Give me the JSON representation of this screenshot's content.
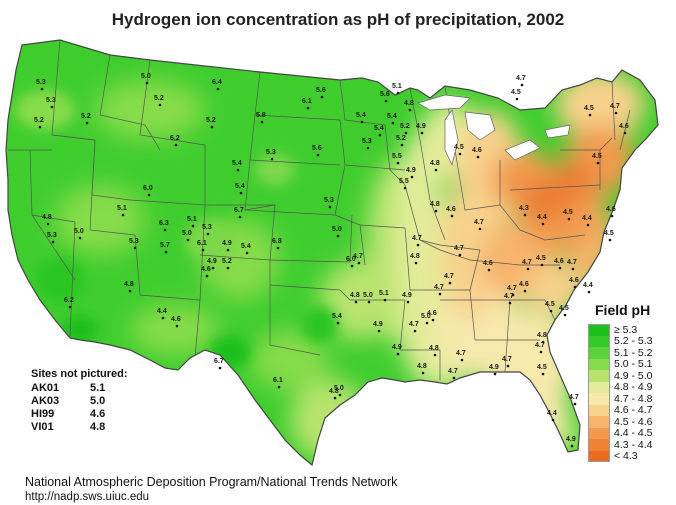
{
  "title": "Hydrogen ion concentration as pH of precipitation, 2002",
  "legend": {
    "title": "Field pH",
    "classes": [
      {
        "label": "≥ 5.3",
        "color": "#1cbf1c"
      },
      {
        "label": "5.2 - 5.3",
        "color": "#33c928"
      },
      {
        "label": "5.1 - 5.2",
        "color": "#5ad23a"
      },
      {
        "label": "5.0 - 5.1",
        "color": "#86dc4a"
      },
      {
        "label": "4.9 - 5.0",
        "color": "#b8e46e"
      },
      {
        "label": "4.8 - 4.9",
        "color": "#e2ec9a"
      },
      {
        "label": "4.7 - 4.8",
        "color": "#f7e8ac"
      },
      {
        "label": "4.6 - 4.7",
        "color": "#f8d18c"
      },
      {
        "label": "4.5 - 4.6",
        "color": "#f6b46c"
      },
      {
        "label": "4.4 - 4.5",
        "color": "#f29a4e"
      },
      {
        "label": "4.3 - 4.4",
        "color": "#ee8134"
      },
      {
        "label": "< 4.3",
        "color": "#ea6a20"
      }
    ]
  },
  "sites_not_pictured": {
    "heading": "Sites not pictured:",
    "rows": [
      {
        "site": "AK01",
        "value": "5.1"
      },
      {
        "site": "AK03",
        "value": "5.0"
      },
      {
        "site": "HI99",
        "value": "4.6"
      },
      {
        "site": "VI01",
        "value": "4.8"
      }
    ]
  },
  "credit": "National Atmospheric Deposition Program/National Trends Network",
  "url": "http://nadp.sws.uiuc.edu",
  "colors": {
    "west_green": "#3fcd2e",
    "mid_green": "#7bd848",
    "transition_yellow": "#e6ee9c",
    "east_cream": "#f6e6a8",
    "east_orange": "#f3a25a",
    "peak_orange": "#ec7a30",
    "state_lines": "#555555"
  },
  "site_values": [
    "5.3",
    "5.0",
    "6.4",
    "5.6",
    "5.1",
    "5.3",
    "5.2",
    "5.2",
    "6.1",
    "4.8",
    "5.2",
    "5.2",
    "4.9",
    "5.4",
    "5.4",
    "5.6",
    "4.7",
    "4.5",
    "4.5",
    "4.7",
    "5.4",
    "5.8",
    "5.3",
    "5.6",
    "6.2",
    "5.2",
    "5.5",
    "5.2",
    "4.6",
    "4.5",
    "4.8",
    "5.3",
    "4.6",
    "4.5",
    "4.9",
    "6.0",
    "5.4",
    "5.5",
    "6.3",
    "5.3",
    "5.7",
    "5.1",
    "6.1",
    "5.0",
    "4.9",
    "5.4",
    "6.8",
    "5.3",
    "4.8",
    "4.6",
    "4.7",
    "4.3",
    "4.4",
    "4.5",
    "4.4",
    "6.7",
    "4.6",
    "4.5",
    "4.7",
    "4.7",
    "5.4",
    "5.3",
    "6.0",
    "5.2",
    "4.9",
    "4.8",
    "4.7",
    "4.6",
    "4.7",
    "4.5",
    "5.0",
    "4.8",
    "5.1",
    "4.7",
    "4.7",
    "4.6",
    "4.7",
    "4.4",
    "4.6",
    "5.1",
    "5.3",
    "6.2",
    "5.4",
    "5.0",
    "5.0",
    "4.9",
    "5.0",
    "4.8",
    "4.7",
    "4.9",
    "4.7",
    "4.6",
    "4.8",
    "4.7",
    "6.7",
    "6.1",
    "5.0",
    "4.9",
    "4.8",
    "4.7",
    "4.7",
    "4.5",
    "4.9",
    "4.8",
    "4.7",
    "4.5",
    "4.5",
    "4.7",
    "4.4",
    "4.9",
    "4.8",
    "4.6",
    "4.6",
    "4.4",
    "4.8",
    "4.7",
    "4.6"
  ]
}
